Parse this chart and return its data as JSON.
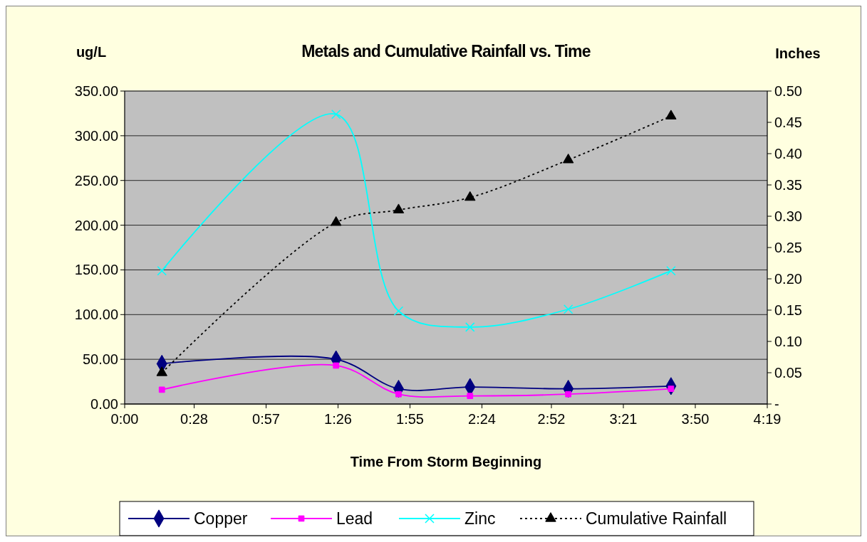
{
  "chart_data": {
    "type": "line",
    "title": "Metals and Cumulative Rainfall vs. Time",
    "xlabel": "Time From Storm Beginning",
    "ylabel": "ug/L",
    "y2label": "Inches",
    "xlim": [
      0,
      4.3167
    ],
    "xticks": [
      {
        "value": 0,
        "label": "0:00"
      },
      {
        "value": 0.4667,
        "label": "0:28"
      },
      {
        "value": 0.95,
        "label": "0:57"
      },
      {
        "value": 1.4333,
        "label": "1:26"
      },
      {
        "value": 1.9167,
        "label": "1:55"
      },
      {
        "value": 2.4,
        "label": "2:24"
      },
      {
        "value": 2.8667,
        "label": "2:52"
      },
      {
        "value": 3.35,
        "label": "3:21"
      },
      {
        "value": 3.8333,
        "label": "3:50"
      },
      {
        "value": 4.3167,
        "label": "4:19"
      }
    ],
    "ylim": [
      0,
      350
    ],
    "yticks": [
      {
        "value": 0,
        "label": "0.00"
      },
      {
        "value": 50,
        "label": "50.00"
      },
      {
        "value": 100,
        "label": "100.00"
      },
      {
        "value": 150,
        "label": "150.00"
      },
      {
        "value": 200,
        "label": "200.00"
      },
      {
        "value": 250,
        "label": "250.00"
      },
      {
        "value": 300,
        "label": "300.00"
      },
      {
        "value": 350,
        "label": "350.00"
      }
    ],
    "y2lim": [
      0,
      0.5
    ],
    "y2ticks": [
      {
        "value": 0,
        "label": "-"
      },
      {
        "value": 0.05,
        "label": "0.05"
      },
      {
        "value": 0.1,
        "label": "0.10"
      },
      {
        "value": 0.15,
        "label": "0.15"
      },
      {
        "value": 0.2,
        "label": "0.20"
      },
      {
        "value": 0.25,
        "label": "0.25"
      },
      {
        "value": 0.3,
        "label": "0.30"
      },
      {
        "value": 0.35,
        "label": "0.35"
      },
      {
        "value": 0.4,
        "label": "0.40"
      },
      {
        "value": 0.45,
        "label": "0.45"
      },
      {
        "value": 0.5,
        "label": "0.50"
      }
    ],
    "x": [
      0.25,
      1.42,
      1.84,
      2.32,
      2.98,
      3.67
    ],
    "grid": "y",
    "legend": "bottom",
    "series": [
      {
        "name": "Copper",
        "color": "#000080",
        "marker": "diamond",
        "values": [
          45,
          50,
          17,
          19,
          17,
          20
        ]
      },
      {
        "name": "Lead",
        "color": "#ff00ff",
        "marker": "square",
        "values": [
          16,
          43,
          11,
          9,
          11,
          17
        ]
      },
      {
        "name": "Zinc",
        "color": "#00ffff",
        "marker": "cross",
        "values": [
          149,
          324,
          104,
          86,
          106,
          149
        ]
      },
      {
        "name": "Cumulative Rainfall",
        "color": "#000000",
        "marker": "triangle",
        "line_style": "dotted",
        "axis": "y2",
        "values": [
          0.05,
          0.29,
          0.31,
          0.33,
          0.39,
          0.46
        ]
      }
    ]
  }
}
